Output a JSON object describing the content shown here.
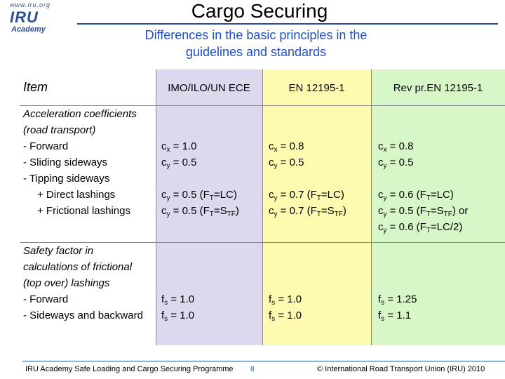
{
  "logo": {
    "www": "www.iru.org",
    "name": "IRU",
    "academy": "Academy"
  },
  "title": "Cargo Securing",
  "subtitle_lines": [
    "Differences in the basic principles in the",
    "guidelines and standards"
  ],
  "header": {
    "item": "Item",
    "col1": "IMO/ILO/UN ECE",
    "col2": "EN 12195-1",
    "col3": "Rev pr.EN 12195-1"
  },
  "section1": {
    "labels": [
      "Acceleration coefficients",
      "(road transport)",
      "- Forward",
      "- Sliding sideways",
      "- Tipping sideways",
      "+ Direct lashings",
      "+ Frictional lashings"
    ],
    "col1": {
      "forward_x": {
        "pre": "c",
        "sub": "x",
        "post": " = 1.0"
      },
      "forward_y": {
        "pre": "c",
        "sub": "y",
        "post": " = 0.5"
      },
      "tip_1": "c<sub>y</sub> = 0.5 (F<sub>T</sub>=LC)",
      "tip_2": "c<sub>y</sub> = 0.5 (F<sub>T</sub>=S<sub>TF</sub>)"
    },
    "col2": {
      "forward_x": {
        "pre": "c",
        "sub": "x",
        "post": " = 0.8"
      },
      "forward_y": {
        "pre": "c",
        "sub": "y",
        "post": " = 0.5"
      },
      "tip_1": "c<sub>y</sub> = 0.7 (F<sub>T</sub>=LC)",
      "tip_2": "c<sub>y</sub> = 0.7 (F<sub>T</sub>=S<sub>TF</sub>)"
    },
    "col3": {
      "forward_x": {
        "pre": "c",
        "sub": "x",
        "post": " = 0.8"
      },
      "forward_y": {
        "pre": "c",
        "sub": "y",
        "post": " = 0.5"
      },
      "tip_1": "c<sub>y</sub> = 0.6 (F<sub>T</sub>=LC)",
      "tip_2": "c<sub>y</sub> = 0.5 (F<sub>T</sub>=S<sub>TF</sub>)  or",
      "tip_3": "c<sub>y</sub> = 0.6 (F<sub>T</sub>=LC/2)"
    }
  },
  "section2": {
    "labels": [
      "Safety factor in",
      "calculations of frictional",
      "(top over) lashings",
      "- Forward",
      "- Sideways and backward"
    ],
    "col1": {
      "forward": {
        "pre": "f",
        "sub": "s",
        "post": " = 1.0"
      },
      "sideways": {
        "pre": "f",
        "sub": "s",
        "post": " = 1.0"
      }
    },
    "col2": {
      "forward": {
        "pre": "f",
        "sub": "s",
        "post": " = 1.0"
      },
      "sideways": {
        "pre": "f",
        "sub": "s",
        "post": " = 1.0"
      }
    },
    "col3": {
      "forward": {
        "pre": "f",
        "sub": "s",
        "post": " = 1.25"
      },
      "sideways": {
        "pre": "f",
        "sub": "s",
        "post": " = 1.1"
      }
    }
  },
  "footer": {
    "left": "IRU Academy Safe Loading and Cargo Securing Programme",
    "page": "8",
    "right": "© International Road Transport Union (IRU) 2010"
  },
  "colors": {
    "col1_bg": "#ddd8ee",
    "col2_bg": "#fefbb0",
    "col3_bg": "#d8f7c8",
    "accent": "#1f4fbf"
  }
}
